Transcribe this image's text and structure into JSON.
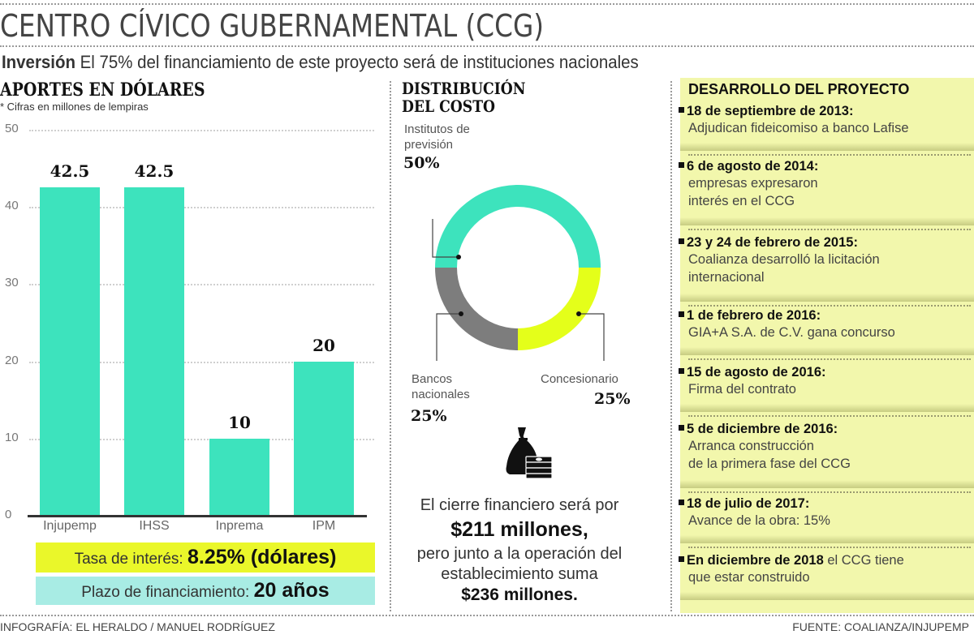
{
  "header": {
    "title": "CENTRO CÍVICO GUBERNAMENTAL (CCG)",
    "subtitle_bold": "Inversión",
    "subtitle_rest": " El 75% del financiamiento de este proyecto será de instituciones nacionales"
  },
  "bar_section": {
    "heading": "APORTES EN DÓLARES",
    "note": "* Cifras en millones de lempiras"
  },
  "donut_section": {
    "heading_line1": "DISTRIBUCIÓN",
    "heading_line2": "DEL COSTO",
    "labels": [
      {
        "line1": "Institutos de",
        "line2": "previsión",
        "pct": "50%"
      },
      {
        "line1": "Bancos",
        "line2": "nacionales",
        "pct": "25%"
      },
      {
        "line1": "Concesionario",
        "line2": "",
        "pct": "25%"
      }
    ]
  },
  "financing": {
    "rate_label": "Tasa de interés: ",
    "rate_value": "8.25% (dólares)",
    "term_label": "Plazo de financiamiento: ",
    "term_value": "20 años"
  },
  "closing": {
    "line1": "El cierre financiero será por",
    "amount1": "$211 millones,",
    "line2": "pero junto a la operación del",
    "line3": "establecimiento suma",
    "amount2": "$236 millones."
  },
  "timeline": {
    "heading": "DESARROLLO DEL PROYECTO",
    "items": [
      {
        "date": "18 de septiembre de 2013:",
        "desc1": "Adjudican fideicomiso a banco Lafise",
        "desc2": ""
      },
      {
        "date": "6 de agosto de 2014:",
        "desc1": "empresas expresaron",
        "desc2": "interés en el CCG"
      },
      {
        "date": "23 y 24 de febrero de 2015:",
        "desc1": "Coalianza desarrolló la licitación",
        "desc2": "internacional"
      },
      {
        "date": "1 de febrero de 2016:",
        "desc1": "GIA+A S.A. de C.V. gana concurso",
        "desc2": ""
      },
      {
        "date": "15 de agosto de 2016:",
        "desc1": "Firma del contrato",
        "desc2": ""
      },
      {
        "date": "5 de diciembre de 2016:",
        "desc1": "Arranca construcción",
        "desc2": "de la primera fase del CCG"
      },
      {
        "date": "18 de julio de 2017:",
        "desc1": "Avance de la obra: 15%",
        "desc2": ""
      },
      {
        "date": "En diciembre de 2018",
        "date_suffix": " el CCG tiene",
        "desc1": "que estar construido",
        "desc2": ""
      }
    ]
  },
  "footer": {
    "credit": "INFOGRAFÍA: EL HERALDO / MANUEL RODRÍGUEZ",
    "source": "FUENTE: COALIANZA/INJUPEMP"
  },
  "icons": {
    "money": "money-bag-icon"
  },
  "colors": {
    "teal": "#3de3bd",
    "yellow": "#e4ff1a",
    "gray": "#7d7d7d",
    "panel": "#f2f7ac",
    "aqua_box": "#a8ece4",
    "yellow_box": "#eaf72a"
  },
  "chart_data": [
    {
      "type": "bar",
      "title": "APORTES EN DÓLARES",
      "subtitle": "* Cifras en millones de lempiras",
      "categories": [
        "Injupemp",
        "IHSS",
        "Inprema",
        "IPM"
      ],
      "values": [
        42.5,
        42.5,
        10,
        20
      ],
      "value_labels": [
        "42.5",
        "42.5",
        "10",
        "20"
      ],
      "xlabel": "",
      "ylabel": "",
      "ylim": [
        0,
        50
      ],
      "yticks": [
        0,
        10,
        20,
        30,
        40,
        50
      ],
      "grid": true,
      "color": "#3de3bd"
    },
    {
      "type": "pie",
      "title": "DISTRIBUCIÓN DEL COSTO",
      "donut": true,
      "categories": [
        "Institutos de previsión",
        "Concesionario",
        "Bancos nacionales"
      ],
      "values": [
        50,
        25,
        25
      ],
      "colors": [
        "#3de3bd",
        "#e4ff1a",
        "#7d7d7d"
      ]
    }
  ]
}
